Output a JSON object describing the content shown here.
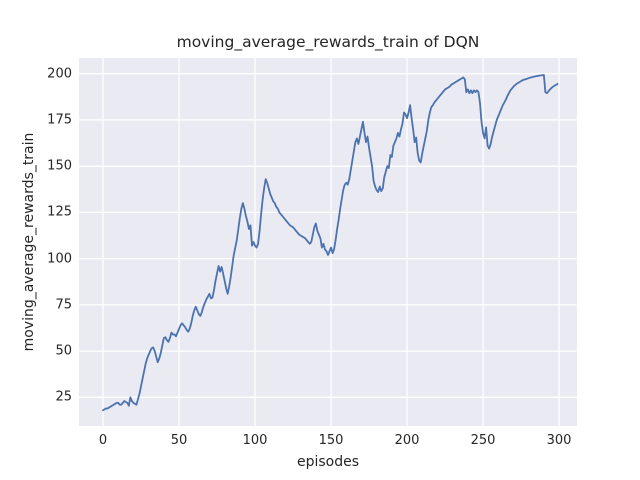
{
  "chart_data": {
    "type": "line",
    "title": "moving_average_rewards_train of DQN",
    "xlabel": "episodes",
    "ylabel": "moving_average_rewards_train",
    "xlim": [
      -15.8,
      311.8
    ],
    "ylim": [
      9.5,
      208.5
    ],
    "xticks": [
      0,
      50,
      100,
      150,
      200,
      250,
      300
    ],
    "yticks": [
      25,
      50,
      75,
      100,
      125,
      150,
      175,
      200
    ],
    "grid": true,
    "legend": false,
    "colors": {
      "line": "#4c72b0",
      "plot_background": "#eaeaf2",
      "grid_line": "#ffffff",
      "text": "#262626",
      "figure_background": "#ffffff"
    },
    "series": [
      {
        "name": "moving_average_rewards_train",
        "points": [
          [
            0,
            18
          ],
          [
            1,
            18.5
          ],
          [
            2,
            19
          ],
          [
            3,
            19
          ],
          [
            4,
            19.5
          ],
          [
            5,
            20
          ],
          [
            6,
            20.5
          ],
          [
            7,
            21
          ],
          [
            8,
            21.5
          ],
          [
            9,
            22
          ],
          [
            10,
            22
          ],
          [
            11,
            21
          ],
          [
            12,
            21
          ],
          [
            13,
            22
          ],
          [
            14,
            23
          ],
          [
            15,
            22.5
          ],
          [
            16,
            22
          ],
          [
            17,
            20.5
          ],
          [
            18,
            25
          ],
          [
            19,
            23
          ],
          [
            20,
            22
          ],
          [
            21,
            21.5
          ],
          [
            22,
            21
          ],
          [
            23,
            24
          ],
          [
            24,
            27
          ],
          [
            25,
            31
          ],
          [
            26,
            35
          ],
          [
            27,
            39
          ],
          [
            28,
            43
          ],
          [
            29,
            46
          ],
          [
            30,
            48
          ],
          [
            31,
            50
          ],
          [
            32,
            51.5
          ],
          [
            33,
            52
          ],
          [
            34,
            50
          ],
          [
            35,
            47
          ],
          [
            36,
            44
          ],
          [
            37,
            46
          ],
          [
            38,
            49
          ],
          [
            39,
            53
          ],
          [
            40,
            57
          ],
          [
            41,
            57.5
          ],
          [
            42,
            56
          ],
          [
            43,
            55
          ],
          [
            44,
            57
          ],
          [
            45,
            60
          ],
          [
            46,
            59
          ],
          [
            47,
            59
          ],
          [
            48,
            58
          ],
          [
            49,
            60
          ],
          [
            50,
            62
          ],
          [
            51,
            64
          ],
          [
            52,
            65
          ],
          [
            53,
            64
          ],
          [
            54,
            63
          ],
          [
            55,
            61.5
          ],
          [
            56,
            60.5
          ],
          [
            57,
            62
          ],
          [
            58,
            65
          ],
          [
            59,
            69
          ],
          [
            60,
            72
          ],
          [
            61,
            74
          ],
          [
            62,
            72
          ],
          [
            63,
            70
          ],
          [
            64,
            69
          ],
          [
            65,
            71
          ],
          [
            66,
            74
          ],
          [
            67,
            76
          ],
          [
            68,
            78
          ],
          [
            69,
            79.5
          ],
          [
            70,
            81
          ],
          [
            71,
            78.5
          ],
          [
            72,
            79
          ],
          [
            73,
            83
          ],
          [
            74,
            88
          ],
          [
            75,
            92
          ],
          [
            76,
            96
          ],
          [
            77,
            93
          ],
          [
            78,
            95.5
          ],
          [
            79,
            92
          ],
          [
            80,
            88
          ],
          [
            81,
            84
          ],
          [
            82,
            81
          ],
          [
            83,
            85
          ],
          [
            84,
            90
          ],
          [
            85,
            96
          ],
          [
            86,
            102
          ],
          [
            87,
            106
          ],
          [
            88,
            110
          ],
          [
            89,
            116
          ],
          [
            90,
            122
          ],
          [
            91,
            127
          ],
          [
            92,
            130
          ],
          [
            93,
            127
          ],
          [
            94,
            123
          ],
          [
            95,
            120
          ],
          [
            96,
            116
          ],
          [
            97,
            118
          ],
          [
            98,
            107
          ],
          [
            99,
            109
          ],
          [
            100,
            107
          ],
          [
            101,
            106
          ],
          [
            102,
            108
          ],
          [
            103,
            115
          ],
          [
            104,
            124
          ],
          [
            105,
            132
          ],
          [
            106,
            138
          ],
          [
            107,
            143
          ],
          [
            108,
            141
          ],
          [
            109,
            138
          ],
          [
            110,
            135
          ],
          [
            111,
            133
          ],
          [
            112,
            131
          ],
          [
            113,
            130
          ],
          [
            114,
            128
          ],
          [
            115,
            127
          ],
          [
            116,
            125
          ],
          [
            117,
            124
          ],
          [
            118,
            123
          ],
          [
            119,
            122
          ],
          [
            120,
            121
          ],
          [
            121,
            120
          ],
          [
            122,
            119
          ],
          [
            123,
            118
          ],
          [
            124,
            117.5
          ],
          [
            125,
            117
          ],
          [
            126,
            116
          ],
          [
            127,
            115
          ],
          [
            128,
            114
          ],
          [
            129,
            113
          ],
          [
            130,
            112.5
          ],
          [
            131,
            112
          ],
          [
            132,
            111.5
          ],
          [
            133,
            111
          ],
          [
            134,
            110
          ],
          [
            135,
            109
          ],
          [
            136,
            108
          ],
          [
            137,
            109
          ],
          [
            138,
            113
          ],
          [
            139,
            117
          ],
          [
            140,
            119
          ],
          [
            141,
            115
          ],
          [
            142,
            113
          ],
          [
            143,
            111
          ],
          [
            144,
            106
          ],
          [
            145,
            108
          ],
          [
            146,
            105
          ],
          [
            147,
            104
          ],
          [
            148,
            102
          ],
          [
            149,
            104
          ],
          [
            150,
            106
          ],
          [
            151,
            103
          ],
          [
            152,
            105
          ],
          [
            153,
            110
          ],
          [
            154,
            116
          ],
          [
            155,
            121
          ],
          [
            156,
            127
          ],
          [
            157,
            132
          ],
          [
            158,
            137
          ],
          [
            159,
            140
          ],
          [
            160,
            141
          ],
          [
            161,
            140
          ],
          [
            162,
            143
          ],
          [
            163,
            148
          ],
          [
            164,
            153
          ],
          [
            165,
            158
          ],
          [
            166,
            163
          ],
          [
            167,
            165
          ],
          [
            168,
            162
          ],
          [
            169,
            166
          ],
          [
            170,
            170
          ],
          [
            171,
            174
          ],
          [
            172,
            168
          ],
          [
            173,
            163
          ],
          [
            174,
            166
          ],
          [
            175,
            160
          ],
          [
            176,
            155
          ],
          [
            177,
            150
          ],
          [
            178,
            142
          ],
          [
            179,
            139
          ],
          [
            180,
            137
          ],
          [
            181,
            136
          ],
          [
            182,
            139
          ],
          [
            183,
            136.5
          ],
          [
            184,
            138
          ],
          [
            185,
            144
          ],
          [
            186,
            147
          ],
          [
            187,
            150
          ],
          [
            188,
            149
          ],
          [
            189,
            156
          ],
          [
            190,
            155
          ],
          [
            191,
            161
          ],
          [
            192,
            163
          ],
          [
            193,
            165
          ],
          [
            194,
            168
          ],
          [
            195,
            166
          ],
          [
            196,
            170
          ],
          [
            197,
            173
          ],
          [
            198,
            179
          ],
          [
            199,
            178
          ],
          [
            200,
            176
          ],
          [
            201,
            179
          ],
          [
            202,
            183
          ],
          [
            203,
            176
          ],
          [
            204,
            170
          ],
          [
            205,
            163
          ],
          [
            206,
            165.5
          ],
          [
            207,
            157
          ],
          [
            208,
            153
          ],
          [
            209,
            152
          ],
          [
            210,
            157
          ],
          [
            211,
            161
          ],
          [
            212,
            165
          ],
          [
            213,
            169
          ],
          [
            214,
            175
          ],
          [
            215,
            179
          ],
          [
            216,
            182
          ],
          [
            217,
            183
          ],
          [
            218,
            184.5
          ],
          [
            219,
            185.5
          ],
          [
            220,
            186.5
          ],
          [
            221,
            187.5
          ],
          [
            222,
            188.5
          ],
          [
            223,
            189.5
          ],
          [
            224,
            190.5
          ],
          [
            225,
            191.5
          ],
          [
            226,
            192
          ],
          [
            227,
            192.5
          ],
          [
            228,
            193
          ],
          [
            229,
            194
          ],
          [
            230,
            194.5
          ],
          [
            231,
            195
          ],
          [
            232,
            195.5
          ],
          [
            233,
            196
          ],
          [
            234,
            196.5
          ],
          [
            235,
            197
          ],
          [
            236,
            197.5
          ],
          [
            237,
            198
          ],
          [
            238,
            197
          ],
          [
            239,
            190
          ],
          [
            240,
            191.5
          ],
          [
            241,
            189.5
          ],
          [
            242,
            191
          ],
          [
            243,
            189.5
          ],
          [
            244,
            191
          ],
          [
            245,
            190
          ],
          [
            246,
            191
          ],
          [
            247,
            190
          ],
          [
            248,
            184
          ],
          [
            249,
            174
          ],
          [
            250,
            168
          ],
          [
            251,
            165
          ],
          [
            252,
            171
          ],
          [
            253,
            161
          ],
          [
            254,
            159.5
          ],
          [
            255,
            162
          ],
          [
            256,
            166
          ],
          [
            257,
            169
          ],
          [
            258,
            172
          ],
          [
            259,
            175
          ],
          [
            260,
            177
          ],
          [
            261,
            179
          ],
          [
            262,
            181
          ],
          [
            263,
            183
          ],
          [
            264,
            184.5
          ],
          [
            265,
            186
          ],
          [
            266,
            188
          ],
          [
            267,
            189.5
          ],
          [
            268,
            191
          ],
          [
            269,
            192
          ],
          [
            270,
            193
          ],
          [
            271,
            193.8
          ],
          [
            272,
            194.5
          ],
          [
            273,
            195
          ],
          [
            274,
            195.5
          ],
          [
            275,
            196
          ],
          [
            276,
            196.5
          ],
          [
            277,
            196.8
          ],
          [
            278,
            197
          ],
          [
            279,
            197.3
          ],
          [
            280,
            197.6
          ],
          [
            281,
            197.9
          ],
          [
            282,
            198.1
          ],
          [
            283,
            198.3
          ],
          [
            284,
            198.5
          ],
          [
            285,
            198.7
          ],
          [
            286,
            198.8
          ],
          [
            287,
            199
          ],
          [
            288,
            199.1
          ],
          [
            289,
            199.2
          ],
          [
            290,
            199.3
          ],
          [
            291,
            190
          ],
          [
            292,
            189.5
          ],
          [
            293,
            190.5
          ],
          [
            294,
            191.5
          ],
          [
            295,
            192.3
          ],
          [
            296,
            193
          ],
          [
            297,
            193.5
          ],
          [
            298,
            194
          ],
          [
            299,
            194.5
          ]
        ]
      }
    ]
  }
}
